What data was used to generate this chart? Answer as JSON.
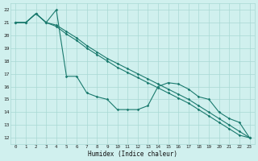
{
  "xlabel": "Humidex (Indice chaleur)",
  "background_color": "#d0f0ee",
  "grid_color": "#a8d8d4",
  "line_color": "#1a7a6e",
  "xlim": [
    -0.5,
    23.5
  ],
  "ylim": [
    11.5,
    22.5
  ],
  "xticks": [
    0,
    1,
    2,
    3,
    4,
    5,
    6,
    7,
    8,
    9,
    10,
    11,
    12,
    13,
    14,
    15,
    16,
    17,
    18,
    19,
    20,
    21,
    22,
    23
  ],
  "yticks": [
    12,
    13,
    14,
    15,
    16,
    17,
    18,
    19,
    20,
    21,
    22
  ],
  "line1_x": [
    0,
    1,
    2,
    3,
    4,
    5,
    6,
    7,
    8,
    9,
    10,
    11,
    12,
    13,
    14,
    15,
    16,
    17,
    18,
    19,
    20,
    21,
    22,
    23
  ],
  "line1_y": [
    21,
    21,
    21.7,
    21.0,
    22.0,
    16.8,
    16.8,
    15.5,
    15.2,
    15.0,
    14.2,
    14.2,
    14.2,
    14.5,
    16.0,
    16.3,
    16.2,
    15.8,
    15.2,
    15.0,
    14.0,
    13.5,
    13.2,
    12.0
  ],
  "line2_x": [
    0,
    1,
    2,
    3,
    4,
    5,
    6,
    7,
    8,
    9,
    10,
    11,
    12,
    13,
    14,
    15,
    16,
    17,
    18,
    19,
    20,
    21,
    22,
    23
  ],
  "line2_y": [
    21,
    21,
    21.7,
    21.0,
    20.8,
    20.3,
    19.8,
    19.2,
    18.7,
    18.2,
    17.8,
    17.4,
    17.0,
    16.6,
    16.2,
    15.8,
    15.4,
    15.0,
    14.5,
    14.0,
    13.5,
    13.0,
    12.5,
    12.0
  ],
  "line3_x": [
    0,
    1,
    2,
    3,
    4,
    5,
    6,
    7,
    8,
    9,
    10,
    11,
    12,
    13,
    14,
    15,
    16,
    17,
    18,
    19,
    20,
    21,
    22,
    23
  ],
  "line3_y": [
    21,
    21,
    21.7,
    21.0,
    20.7,
    20.1,
    19.6,
    19.0,
    18.5,
    18.0,
    17.5,
    17.1,
    16.7,
    16.3,
    15.9,
    15.5,
    15.1,
    14.7,
    14.2,
    13.7,
    13.2,
    12.7,
    12.2,
    12.0
  ]
}
